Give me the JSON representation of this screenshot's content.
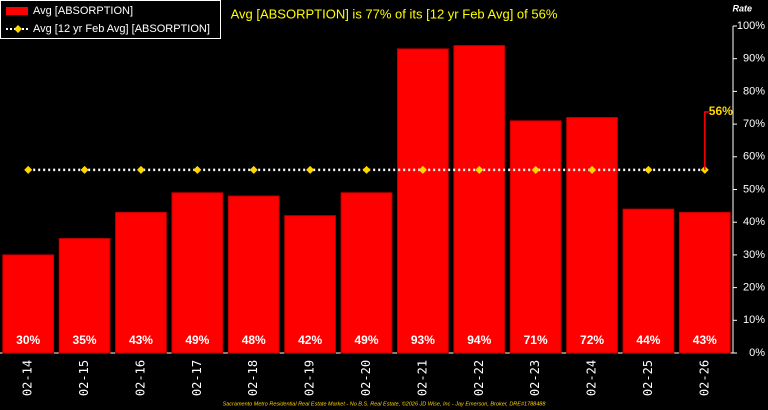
{
  "chart_data": {
    "type": "bar",
    "title": "Avg [ABSORPTION] is 77% of its [12 yr Feb Avg] of 56%",
    "y_axis_label": "Rate",
    "annotation": "56%",
    "footer": "Sacramento Metro Residential Real Estate Market - No B.S. Real Estate, ©2026 JD Wise, Inc - Jay Emerson, Broker, DRE#1788488",
    "categories": [
      "02-14",
      "02-15",
      "02-16",
      "02-17",
      "02-18",
      "02-19",
      "02-20",
      "02-21",
      "02-22",
      "02-23",
      "02-24",
      "02-25",
      "02-26"
    ],
    "series": [
      {
        "name": "Avg [ABSORPTION]",
        "type": "bar",
        "color": "#ff0000",
        "values": [
          30,
          35,
          43,
          49,
          48,
          42,
          49,
          93,
          94,
          71,
          72,
          44,
          43
        ],
        "value_labels": [
          "30%",
          "35%",
          "43%",
          "49%",
          "48%",
          "42%",
          "49%",
          "93%",
          "94%",
          "71%",
          "72%",
          "44%",
          "43%"
        ]
      },
      {
        "name": "Avg [12 yr Feb Avg] [ABSORPTION]",
        "type": "line",
        "color": "#ffd700",
        "values": [
          56,
          56,
          56,
          56,
          56,
          56,
          56,
          56,
          56,
          56,
          56,
          56,
          56
        ]
      }
    ],
    "ylim": [
      0,
      100
    ],
    "yticks": [
      {
        "value": 0,
        "label": "0%"
      },
      {
        "value": 10,
        "label": "10%"
      },
      {
        "value": 20,
        "label": "20%"
      },
      {
        "value": 30,
        "label": "30%"
      },
      {
        "value": 40,
        "label": "40%"
      },
      {
        "value": 50,
        "label": "50%"
      },
      {
        "value": 60,
        "label": "60%"
      },
      {
        "value": 70,
        "label": "70%"
      },
      {
        "value": 80,
        "label": "80%"
      },
      {
        "value": 90,
        "label": "90%"
      },
      {
        "value": 100,
        "label": "100%"
      }
    ],
    "grid": false
  }
}
